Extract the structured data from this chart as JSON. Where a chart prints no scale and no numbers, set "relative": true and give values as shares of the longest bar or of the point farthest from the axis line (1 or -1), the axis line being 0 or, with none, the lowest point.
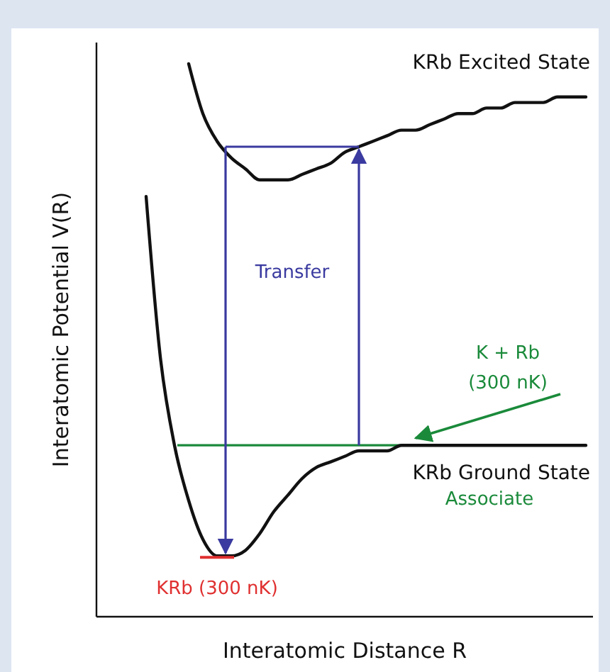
{
  "chart_data": {
    "type": "line",
    "relative": true,
    "xlabel": "Interatomic Distance R",
    "ylabel": "Interatomic Potential V(R)",
    "marker": "none",
    "line_style": "solid",
    "categories": [
      null,
      null,
      null,
      null,
      null,
      null,
      null,
      null,
      null,
      null,
      null,
      null,
      null,
      null,
      null,
      null,
      null,
      null,
      null,
      null,
      null,
      null,
      null,
      null,
      null,
      null,
      null,
      null,
      null,
      null,
      null,
      null,
      null,
      null,
      null
    ],
    "series": [
      {
        "name": "KRb Excited State",
        "color": "#111111",
        "values": [
          null,
          null,
          null,
          null,
          null,
          null,
          1,
          0.91,
          0.86,
          0.83,
          0.81,
          0.79,
          0.79,
          0.79,
          0.8,
          0.81,
          0.82,
          0.84,
          0.85,
          0.86,
          0.87,
          0.88,
          0.88,
          0.89,
          0.9,
          0.91,
          0.91,
          0.92,
          0.92,
          0.93,
          0.93,
          0.93,
          0.94,
          0.94,
          0.94
        ]
      },
      {
        "name": "KRb Ground State",
        "color": "#111111",
        "values": [
          null,
          null,
          null,
          0.76,
          0.47,
          0.31,
          0.21,
          0.14,
          0.11,
          0.11,
          0.12,
          0.15,
          0.19,
          0.22,
          0.25,
          0.27,
          0.28,
          0.29,
          0.3,
          0.3,
          0.3,
          0.31,
          0.31,
          0.31,
          0.31,
          0.31,
          0.31,
          0.31,
          0.31,
          0.31,
          0.31,
          0.31,
          0.31,
          0.31,
          0.31
        ]
      }
    ],
    "ref_lines": [
      {
        "axis": "y",
        "value": 0.31,
        "label": "Associate",
        "color": "#1a8a3a"
      }
    ],
    "annotations": [
      "Transfer",
      "K + Rb",
      "(300 nK)",
      "KRb (300 nK)"
    ]
  }
}
